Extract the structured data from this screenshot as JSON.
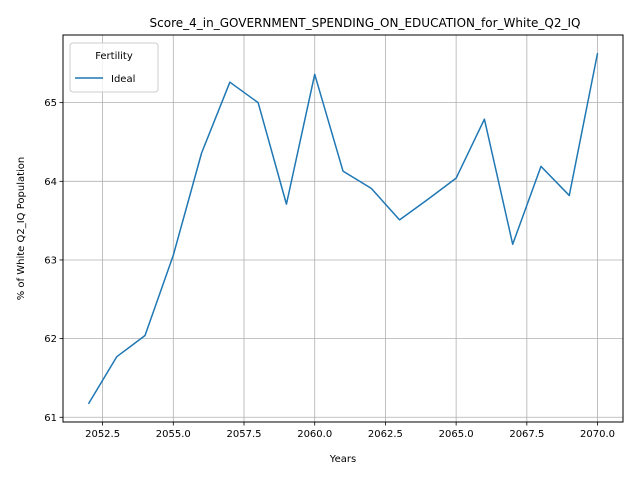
{
  "chart_data": {
    "type": "line",
    "title": "Score_4_in_GOVERNMENT_SPENDING_ON_EDUCATION_for_White_Q2_IQ",
    "xlabel": "Years",
    "ylabel": "% of White Q2_IQ Population",
    "xlim": [
      2051.1,
      2070.9
    ],
    "ylim": [
      60.94,
      65.86
    ],
    "xticks": [
      2052.5,
      2055.0,
      2057.5,
      2060.0,
      2062.5,
      2065.0,
      2067.5,
      2070.0
    ],
    "xtick_labels": [
      "2052.5",
      "2055.0",
      "2057.5",
      "2060.0",
      "2062.5",
      "2065.0",
      "2067.5",
      "2070.0"
    ],
    "yticks": [
      61,
      62,
      63,
      64,
      65
    ],
    "ytick_labels": [
      "61",
      "62",
      "63",
      "64",
      "65"
    ],
    "grid": true,
    "legend": {
      "title": "Fertility",
      "position": "top-left"
    },
    "series": [
      {
        "name": "Ideal",
        "color": "#1f77b4",
        "x": [
          2052,
          2053,
          2054,
          2055,
          2056,
          2057,
          2058,
          2059,
          2060,
          2061,
          2062,
          2063,
          2064,
          2065,
          2066,
          2067,
          2068,
          2069,
          2070
        ],
        "y": [
          61.17,
          61.77,
          62.04,
          63.06,
          64.36,
          65.26,
          65.0,
          63.71,
          65.36,
          64.13,
          63.91,
          63.51,
          63.77,
          64.04,
          64.79,
          63.2,
          64.19,
          63.82,
          65.63
        ]
      }
    ]
  }
}
